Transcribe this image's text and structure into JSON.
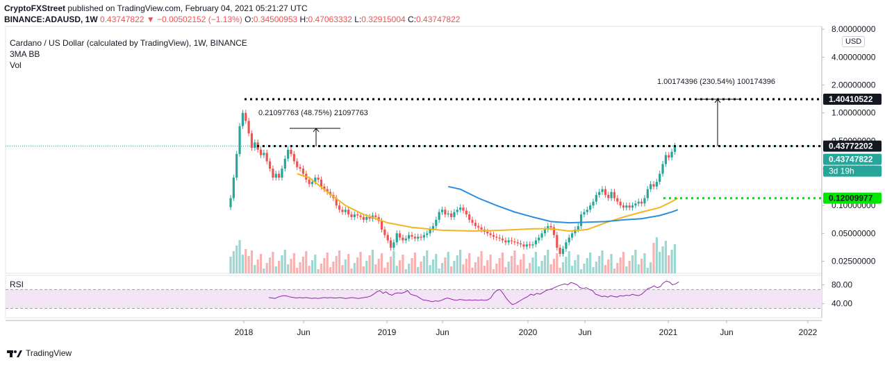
{
  "header": {
    "publisher": "CryptoFXStreet",
    "published_text": "published on TradingView.com, February 04, 2021 05:21:27 UTC",
    "symbol": "BINANCE:ADAUSD, 1W",
    "last": "0.43747822",
    "change": "−0.00502152 (−1.13%)",
    "o_label": "O:",
    "o": "0.34500953",
    "h_label": "H:",
    "h": "0.47063332",
    "l_label": "L:",
    "l": "0.32915004",
    "c_label": "C:",
    "c": "0.43747822"
  },
  "legend": {
    "title": "Cardano / US Dollar (calculated by TradingView), 1W, BINANCE",
    "indicator1": "3MA BB",
    "indicator2": "Vol",
    "rsi": "RSI"
  },
  "axis": {
    "currency": "USD"
  },
  "colors": {
    "up": "#26a69a",
    "down": "#ef5350",
    "ma_orange": "#f5b521",
    "ma_blue": "#2a8ee0",
    "rsi_line": "#8e24aa",
    "rsi_band": "#f3e5f5",
    "resistance_green": "#00e600"
  },
  "chart_data": {
    "type": "candlestick",
    "y_scale": "log",
    "y_ticks": [
      "8.00000000",
      "4.00000000",
      "2.00000000",
      "1.00000000",
      "0.50000000",
      "0.25000000",
      "0.10000000",
      "0.05000000",
      "0.02500000"
    ],
    "y_tick_values": [
      8,
      4,
      2,
      1,
      0.5,
      0.25,
      0.1,
      0.05,
      0.025
    ],
    "x_ticks": [
      "2018",
      "Jun",
      "2019",
      "Jun",
      "2020",
      "Jun",
      "2021",
      "Jun",
      "2022"
    ],
    "price_labels": [
      {
        "value": "1.40410522",
        "style": "dark"
      },
      {
        "value": "0.43772202",
        "style": "dark"
      },
      {
        "value": "0.43747822",
        "style": "teal"
      },
      {
        "value": "0.12009977",
        "style": "green"
      }
    ],
    "countdown": "3d 19h",
    "measurements": [
      {
        "text": "0.21097763 (48.75%) 21097763"
      },
      {
        "text": "1.00174396 (230.54%) 100174396"
      }
    ],
    "levels": [
      1.40410522,
      0.43772202,
      0.12009977
    ],
    "rsi_ticks": [
      "80.00",
      "40.00"
    ],
    "rsi_tick_values": [
      80,
      40
    ],
    "rsi_band": [
      30,
      70
    ],
    "close": [
      0.12,
      0.2,
      0.36,
      0.72,
      1.0,
      0.82,
      0.6,
      0.42,
      0.48,
      0.4,
      0.35,
      0.37,
      0.3,
      0.25,
      0.2,
      0.22,
      0.2,
      0.25,
      0.32,
      0.4,
      0.36,
      0.3,
      0.26,
      0.25,
      0.22,
      0.19,
      0.17,
      0.18,
      0.2,
      0.19,
      0.16,
      0.15,
      0.14,
      0.13,
      0.12,
      0.1,
      0.09,
      0.085,
      0.09,
      0.08,
      0.075,
      0.08,
      0.078,
      0.075,
      0.07,
      0.075,
      0.072,
      0.078,
      0.075,
      0.068,
      0.055,
      0.048,
      0.042,
      0.035,
      0.04,
      0.05,
      0.045,
      0.042,
      0.044,
      0.048,
      0.046,
      0.044,
      0.046,
      0.045,
      0.048,
      0.05,
      0.055,
      0.06,
      0.07,
      0.085,
      0.09,
      0.08,
      0.082,
      0.075,
      0.085,
      0.09,
      0.095,
      0.088,
      0.08,
      0.07,
      0.065,
      0.06,
      0.058,
      0.055,
      0.052,
      0.05,
      0.048,
      0.046,
      0.045,
      0.044,
      0.042,
      0.04,
      0.042,
      0.041,
      0.04,
      0.039,
      0.038,
      0.036,
      0.038,
      0.037,
      0.038,
      0.042,
      0.045,
      0.05,
      0.055,
      0.06,
      0.058,
      0.048,
      0.035,
      0.03,
      0.034,
      0.04,
      0.045,
      0.05,
      0.055,
      0.06,
      0.08,
      0.085,
      0.09,
      0.1,
      0.11,
      0.13,
      0.14,
      0.15,
      0.13,
      0.12,
      0.14,
      0.12,
      0.11,
      0.1,
      0.095,
      0.1,
      0.095,
      0.1,
      0.105,
      0.11,
      0.105,
      0.12,
      0.15,
      0.17,
      0.16,
      0.18,
      0.22,
      0.28,
      0.35,
      0.33,
      0.38,
      0.44
    ],
    "ma_orange": [
      [
        22,
        0.22
      ],
      [
        26,
        0.2
      ],
      [
        32,
        0.14
      ],
      [
        38,
        0.1
      ],
      [
        44,
        0.08
      ],
      [
        52,
        0.065
      ],
      [
        60,
        0.058
      ],
      [
        70,
        0.054
      ],
      [
        80,
        0.053
      ],
      [
        90,
        0.054
      ],
      [
        100,
        0.056
      ],
      [
        106,
        0.056
      ],
      [
        112,
        0.053
      ],
      [
        118,
        0.055
      ],
      [
        124,
        0.065
      ],
      [
        130,
        0.075
      ],
      [
        136,
        0.085
      ],
      [
        142,
        0.095
      ],
      [
        146,
        0.11
      ],
      [
        148,
        0.12
      ]
    ],
    "ma_blue": [
      [
        72,
        0.16
      ],
      [
        76,
        0.15
      ],
      [
        82,
        0.12
      ],
      [
        88,
        0.1
      ],
      [
        94,
        0.085
      ],
      [
        100,
        0.075
      ],
      [
        106,
        0.067
      ],
      [
        112,
        0.065
      ],
      [
        118,
        0.066
      ],
      [
        124,
        0.067
      ],
      [
        130,
        0.07
      ],
      [
        136,
        0.072
      ],
      [
        142,
        0.078
      ],
      [
        146,
        0.085
      ],
      [
        148,
        0.09
      ]
    ],
    "rsi": [
      53,
      52,
      51,
      54,
      56,
      57,
      56,
      54,
      53,
      52,
      53,
      52,
      53,
      52,
      51,
      52,
      51,
      52,
      53,
      52,
      53,
      52,
      52,
      53,
      52,
      51,
      52,
      53,
      52,
      51,
      52,
      53,
      54,
      56,
      60,
      65,
      68,
      62,
      65,
      60,
      58,
      62,
      63,
      62,
      64,
      68,
      60,
      58,
      56,
      52,
      48,
      47,
      46,
      44,
      46,
      45,
      47,
      50,
      52,
      50,
      48,
      47,
      49,
      48,
      47,
      48,
      47,
      48,
      47,
      48,
      47,
      48,
      52,
      62,
      68,
      70,
      62,
      52,
      44,
      38,
      40,
      44,
      48,
      52,
      55,
      60,
      58,
      62,
      60,
      64,
      68,
      70,
      72,
      75,
      78,
      80,
      82,
      80,
      85,
      83,
      80,
      74,
      72,
      74,
      70,
      68,
      60,
      58,
      55,
      56,
      54,
      57,
      55,
      54,
      57,
      56,
      58,
      57,
      60,
      58,
      57,
      60,
      66,
      72,
      74,
      78,
      74,
      76,
      84,
      88,
      86,
      80,
      82,
      86
    ]
  }
}
